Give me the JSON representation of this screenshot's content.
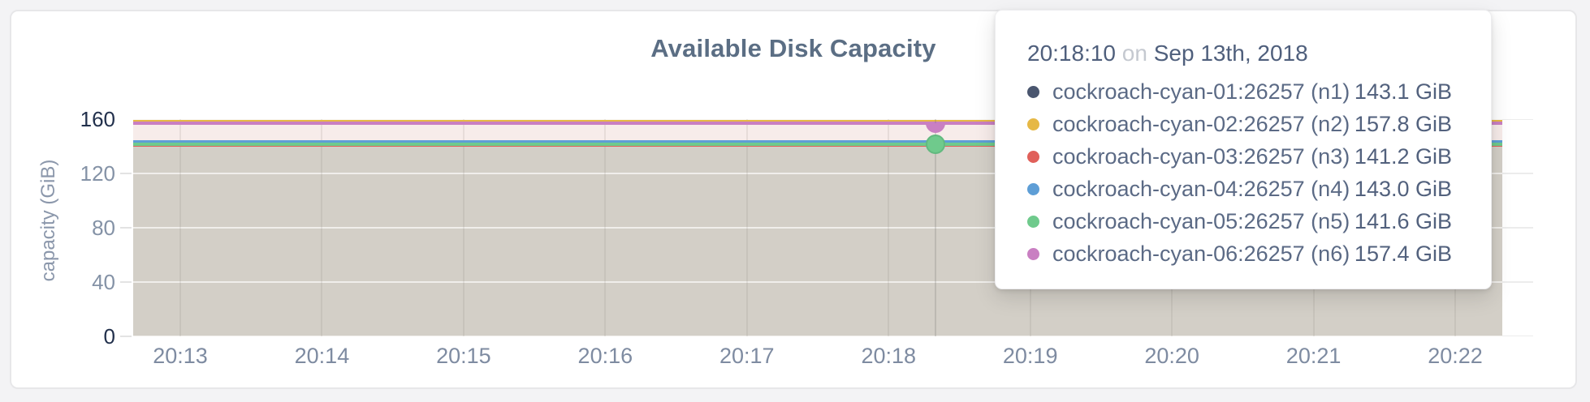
{
  "card": {
    "background": "#ffffff"
  },
  "chart": {
    "title": "Available Disk Capacity",
    "y_axis": {
      "label": "capacity (GiB)",
      "ticks": [
        "160",
        "120",
        "80",
        "40",
        "0"
      ]
    },
    "x_axis": {
      "ticks": [
        "20:13",
        "20:14",
        "20:15",
        "20:16",
        "20:17",
        "20:18",
        "20:19",
        "20:20",
        "20:21",
        "20:22"
      ]
    }
  },
  "tooltip": {
    "time": "20:18:10",
    "separator": "on",
    "date": "Sep 13th, 2018"
  },
  "chart_data": {
    "type": "area",
    "title": "Available Disk Capacity",
    "xlabel": "",
    "ylabel": "capacity (GiB)",
    "ylim": [
      0,
      160
    ],
    "y_ticks": [
      160,
      120,
      80,
      40,
      0
    ],
    "x": [
      "20:13",
      "20:14",
      "20:15",
      "20:16",
      "20:17",
      "20:18",
      "20:19",
      "20:20",
      "20:21",
      "20:22"
    ],
    "grid": true,
    "legend_position": "tooltip-overlay",
    "hover_point": {
      "time": "20:18:10",
      "date": "Sep 13th, 2018",
      "between_ticks": [
        "20:18",
        "20:19"
      ]
    },
    "series": [
      {
        "name": "cockroach-cyan-01:26257 (n1)",
        "color": "#4a566f",
        "value_gib": 143.1,
        "display_value": "143.1 GiB"
      },
      {
        "name": "cockroach-cyan-02:26257 (n2)",
        "color": "#e6b845",
        "value_gib": 157.8,
        "display_value": "157.8 GiB"
      },
      {
        "name": "cockroach-cyan-03:26257 (n3)",
        "color": "#e0605a",
        "value_gib": 141.2,
        "display_value": "141.2 GiB"
      },
      {
        "name": "cockroach-cyan-04:26257 (n4)",
        "color": "#5e9ed6",
        "value_gib": 143.0,
        "display_value": "143.0 GiB"
      },
      {
        "name": "cockroach-cyan-05:26257 (n5)",
        "color": "#6fca8c",
        "value_gib": 141.6,
        "display_value": "141.6 GiB"
      },
      {
        "name": "cockroach-cyan-06:26257 (n6)",
        "color": "#c97fc2",
        "value_gib": 157.4,
        "display_value": "157.4 GiB"
      }
    ],
    "fills": {
      "upper_band_color": "#f7ecea",
      "lower_area_color": "#d3cfc7"
    }
  }
}
